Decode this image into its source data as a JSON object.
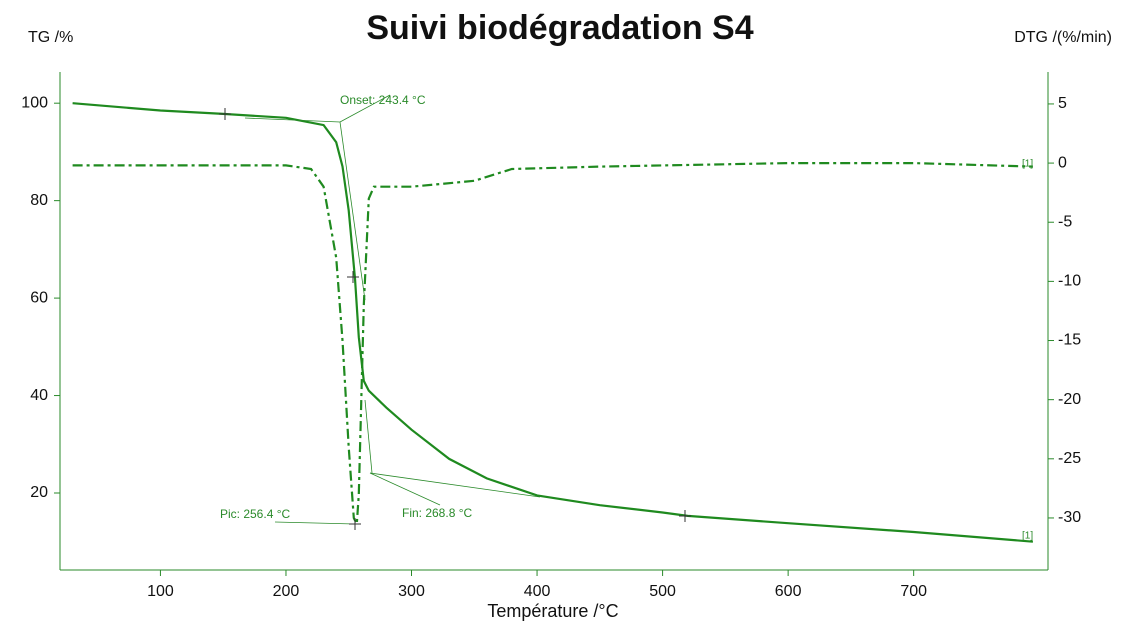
{
  "chart_data": {
    "type": "line",
    "title": "Suivi biodégradation S4",
    "y_label": "TG /%",
    "y2_label": "DTG /(%/min)",
    "x_label": "Température /°C",
    "annotations": [
      "Onset: 243.4 °C",
      "Pic: 256.4 °C",
      "Fin: 268.8 °C"
    ],
    "curve_labels": [
      "[1]",
      "[1]"
    ],
    "xlim": [
      20,
      807
    ],
    "xticks": [
      100,
      200,
      300,
      400,
      500,
      600,
      700
    ],
    "ylim": [
      4.2,
      106.4
    ],
    "yticks": [
      20,
      40,
      60,
      80,
      100
    ],
    "y2lim": [
      -34.4,
      7.7
    ],
    "y2ticks": [
      5,
      0,
      -5,
      -10,
      -15,
      -20,
      -25,
      -30
    ],
    "series": [
      {
        "name": "TG",
        "color": "#1f8a1f",
        "x": [
          30,
          100,
          150,
          200,
          230,
          240,
          245,
          250,
          255,
          258,
          262,
          266,
          280,
          300,
          330,
          360,
          400,
          450,
          500,
          520,
          600,
          700,
          795
        ],
        "values": [
          100,
          98.5,
          97.8,
          97,
          95.5,
          92,
          87,
          78,
          64,
          52,
          43,
          41,
          37.5,
          33,
          27,
          23,
          19.5,
          17.5,
          16,
          15.3,
          13.8,
          12,
          10
        ]
      },
      {
        "name": "DTG",
        "color": "#1f8a1f",
        "axis": "y2",
        "x": [
          30,
          100,
          200,
          220,
          230,
          240,
          245,
          250,
          254,
          256.4,
          258,
          262,
          266,
          270,
          300,
          350,
          380,
          450,
          600,
          700,
          795
        ],
        "values": [
          -0.2,
          -0.2,
          -0.2,
          -0.5,
          -2,
          -8,
          -15,
          -24,
          -30,
          -30.5,
          -28,
          -12,
          -3,
          -2,
          -2,
          -1.5,
          -0.5,
          -0.3,
          0,
          0,
          -0.3
        ]
      }
    ]
  }
}
